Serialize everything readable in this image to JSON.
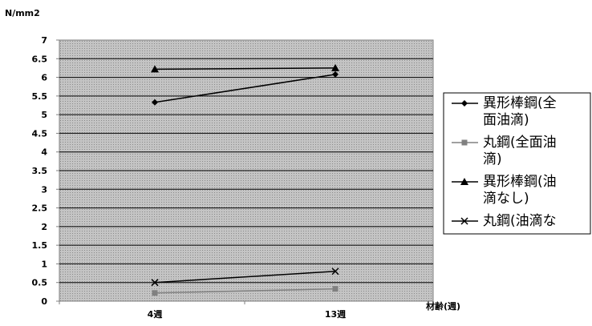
{
  "chart_data": {
    "type": "line",
    "ylabel": "N/mm2",
    "xlabel": "材齢(週)",
    "categories": [
      "4週",
      "13週"
    ],
    "ylim": [
      0,
      7
    ],
    "yticks": [
      "0",
      "0.5",
      "1",
      "1.5",
      "2",
      "2.5",
      "3",
      "3.5",
      "4",
      "4.5",
      "5",
      "5.5",
      "6",
      "6.5",
      "7"
    ],
    "grid": true,
    "legend_position": "right",
    "series": [
      {
        "name": "異形棒鋼(全面油滴)",
        "legend_lines": [
          "異形棒鋼(全",
          "面油滴)"
        ],
        "values": [
          5.33,
          6.08
        ],
        "marker": "diamond",
        "color": "#000000"
      },
      {
        "name": "丸鋼(全面油滴)",
        "legend_lines": [
          "丸鋼(全面油",
          "滴)"
        ],
        "values": [
          0.22,
          0.33
        ],
        "marker": "square",
        "color": "#808080"
      },
      {
        "name": "異形棒鋼(油滴なし)",
        "legend_lines": [
          "異形棒鋼(油",
          "滴なし)"
        ],
        "values": [
          6.22,
          6.25
        ],
        "marker": "triangle",
        "color": "#000000"
      },
      {
        "name": "丸鋼(油滴な",
        "legend_lines": [
          "丸鋼(油滴な"
        ],
        "values": [
          0.5,
          0.8
        ],
        "marker": "x",
        "color": "#000000"
      }
    ]
  }
}
